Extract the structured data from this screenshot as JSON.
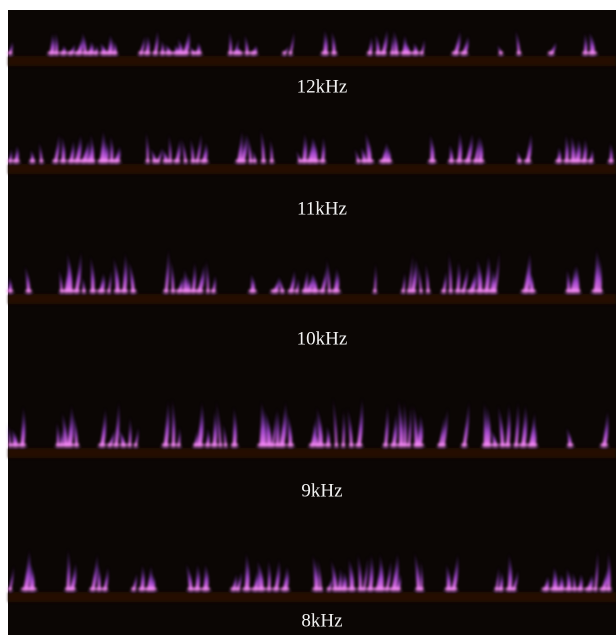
{
  "labels": [
    "12kHz",
    "11kHz",
    "10kHz",
    "9kHz",
    "8kHz"
  ]
}
